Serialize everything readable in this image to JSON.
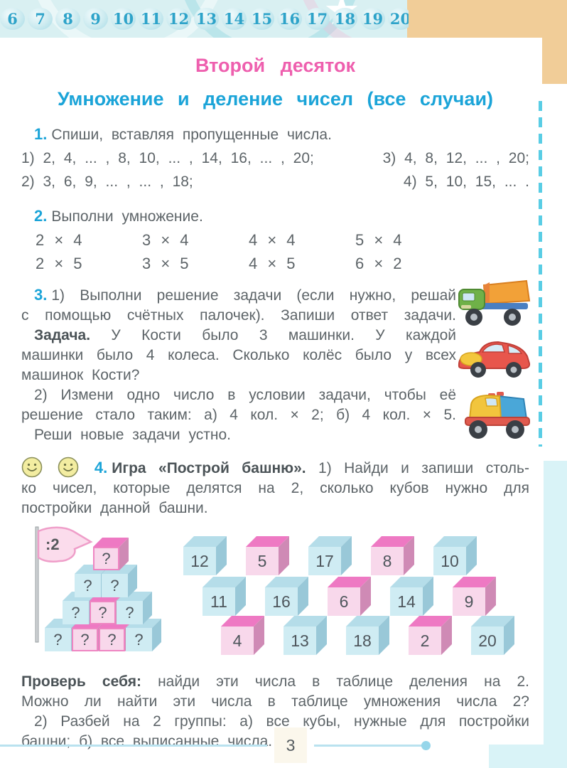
{
  "header": {
    "numbers": [
      "6",
      "7",
      "8",
      "9",
      "10",
      "11",
      "12",
      "13",
      "14",
      "15",
      "16",
      "17",
      "18",
      "19",
      "20"
    ],
    "star_icon": "★"
  },
  "title": "Второй десяток",
  "subtitle": "Умножение и деление чисел (все случаи)",
  "ex1": {
    "number": "1.",
    "prompt": "Спиши, вставляя пропущенные числа.",
    "rows": [
      {
        "left": "1) 2, 4, ... , 8, 10, ... , 14, 16, ... , 20;",
        "right": "3) 4, 8, 12, ... , 20;"
      },
      {
        "left": "2) 3, 6, 9, ... , ... , 18;",
        "right": "4) 5, 10, 15, ... ."
      }
    ]
  },
  "ex2": {
    "number": "2.",
    "prompt": "Выполни умножение.",
    "rows": [
      [
        "2 × 4",
        "3 × 4",
        "4 × 4",
        "5 × 4"
      ],
      [
        "2 × 5",
        "3 × 5",
        "4 × 5",
        "6 × 2"
      ]
    ]
  },
  "ex3": {
    "number": "3.",
    "lines1": [
      "1) Выполни решение задачи (если нужно, решай",
      "с помощью счётных палочек). Запиши ответ задачи."
    ],
    "task_label": "Задача.",
    "task_rest": "У Кости было 3 машинки. У каждой",
    "task_lines": [
      "машинки было 4 колеса. Сколько колёс было у всех",
      "машинок Кости?"
    ],
    "lines2": [
      "2) Измени одно число в условии задачи, чтобы её",
      "решение стало таким: а) 4 кол. × 2; б) 4 кол. × 5."
    ],
    "line3": "Реши новые задачи устно.",
    "vehicle_icons": [
      "dump-truck-image",
      "toy-car-image",
      "toy-truck-image"
    ]
  },
  "ex4": {
    "number": "4.",
    "game_label": "Игра «Построй башню».",
    "line1_rest": "1) Найди и запиши столь-",
    "lines": [
      "ко чисел, которые делятся на 2, сколько кубов нужно для",
      "постройки данной башни."
    ]
  },
  "tower": {
    "flag_label": ":2",
    "pyramid": {
      "cube_symbol": "?",
      "rows": [
        [
          "pink"
        ],
        [
          "blue",
          "blue"
        ],
        [
          "blue",
          "pink",
          "blue"
        ],
        [
          "blue",
          "pink",
          "pink",
          "blue"
        ]
      ]
    },
    "cubes": [
      [
        {
          "n": "12",
          "c": "blue"
        },
        {
          "n": "5",
          "c": "pink"
        },
        {
          "n": "17",
          "c": "blue"
        },
        {
          "n": "8",
          "c": "pink"
        },
        {
          "n": "10",
          "c": "blue"
        }
      ],
      [
        {
          "n": "11",
          "c": "blue"
        },
        {
          "n": "16",
          "c": "blue"
        },
        {
          "n": "6",
          "c": "pink"
        },
        {
          "n": "14",
          "c": "blue"
        },
        {
          "n": "9",
          "c": "pink"
        }
      ],
      [
        {
          "n": "4",
          "c": "pink"
        },
        {
          "n": "13",
          "c": "blue"
        },
        {
          "n": "18",
          "c": "blue"
        },
        {
          "n": "2",
          "c": "pink"
        },
        {
          "n": "20",
          "c": "blue"
        }
      ]
    ]
  },
  "check": {
    "label": "Проверь себя:",
    "line1_rest": "найди эти числа в таблице деления на 2.",
    "lines": [
      "Можно ли найти эти числа в таблице умножения числа 2?",
      "2) Разбей на 2 группы: а) все кубы, нужные для постройки",
      "башни; б) все выписанные числа."
    ]
  },
  "footer": {
    "page_number": "3"
  },
  "colors": {
    "accent_blue": "#1ba4d8",
    "title_pink": "#ee5fae",
    "body_gray": "#5d6468",
    "corner_orange": "#f1cd98",
    "strip_teal": "#d9f0f2",
    "dashed_line_cyan": "#59cde5",
    "cube_pink_top": "#ee79c3",
    "cube_pink_front": "#f8d8eb",
    "cube_blue_front": "#cfecf3"
  }
}
